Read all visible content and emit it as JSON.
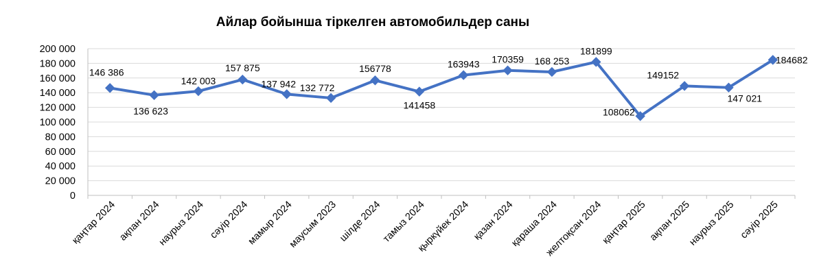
{
  "chart_data": {
    "type": "line",
    "title": "Айлар бойынша тіркелген автомобильдер саны",
    "xlabel": "",
    "ylabel": "",
    "ylim": [
      0,
      200000
    ],
    "yticks": [
      "0",
      "20 000",
      "40 000",
      "60 000",
      "80 000",
      "100 000",
      "120 000",
      "140 000",
      "160 000",
      "180 000",
      "200 000"
    ],
    "grid": true,
    "legend": "none",
    "categories": [
      "қаңтар 2024",
      "ақпан 2024",
      "наурыз 2024",
      "сәуір 2024",
      "мамыр 2024",
      "маусым 2023",
      "шілде 2024",
      "тамыз 2024",
      "қыркүйек 2024",
      "қазан 2024",
      "қараша 2024",
      "желтоқсан 2024",
      "қаңтар 2025",
      "ақпан 2025",
      "наурыз 2025",
      "сәуір 2025"
    ],
    "series": [
      {
        "values": [
          146386,
          136623,
          142003,
          157875,
          137942,
          132772,
          156778,
          141458,
          163943,
          170359,
          168253,
          181899,
          108062,
          149152,
          147021,
          184682
        ],
        "labels": [
          "146 386",
          "136 623",
          "142 003",
          "157 875",
          "137 942",
          "132 772",
          "156778",
          "141458",
          "163943",
          "170359",
          "168 253",
          "181899",
          "108062",
          "149152",
          "147 021",
          "184682"
        ],
        "color": "#4472C4"
      }
    ]
  }
}
